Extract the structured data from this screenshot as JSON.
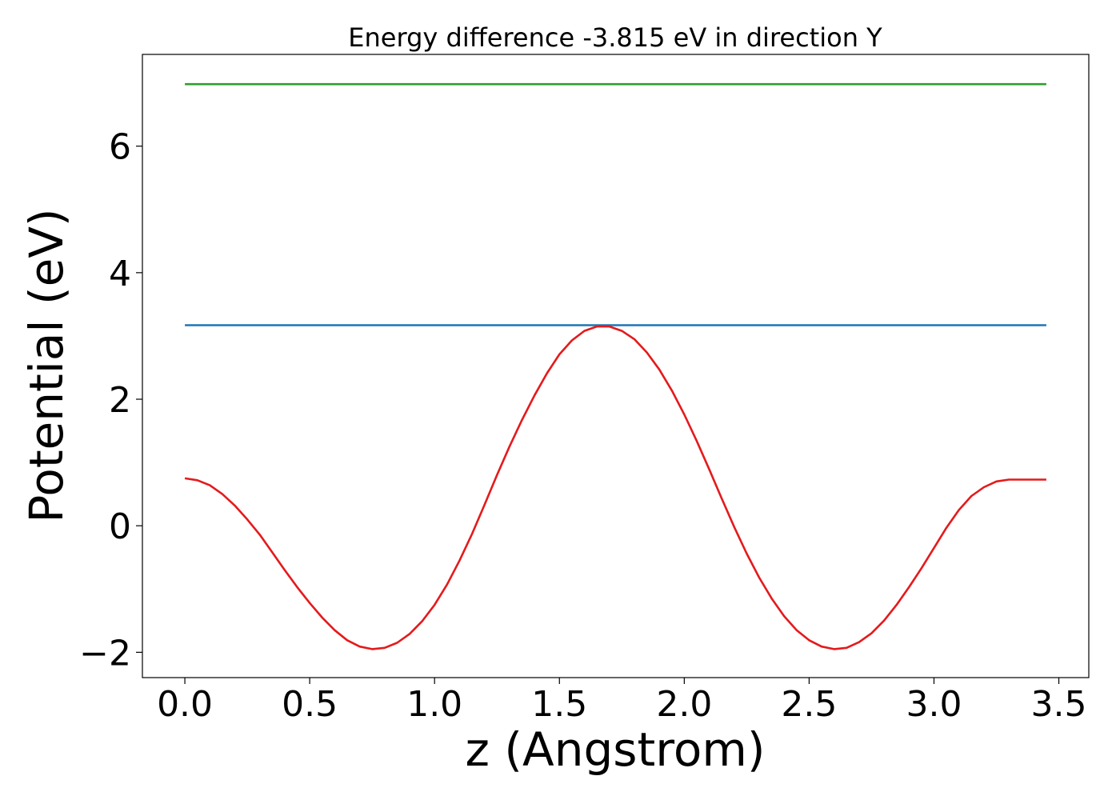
{
  "chart_data": {
    "type": "line",
    "title": "Energy difference -3.815 eV in direction Y",
    "xlabel": "z (Angstrom)",
    "ylabel": "Potential (eV)",
    "xlim": [
      -0.17,
      3.62
    ],
    "ylim": [
      -2.4,
      7.45
    ],
    "grid": false,
    "x_ticks": [
      0.0,
      0.5,
      1.0,
      1.5,
      2.0,
      2.5,
      3.0,
      3.5
    ],
    "x_tick_labels": [
      "0.0",
      "0.5",
      "1.0",
      "1.5",
      "2.0",
      "2.5",
      "3.0",
      "3.5"
    ],
    "y_ticks": [
      -2,
      0,
      2,
      4,
      6
    ],
    "y_tick_labels": [
      "−2",
      "0",
      "2",
      "4",
      "6"
    ],
    "series": [
      {
        "color": "#2ca02c",
        "x": [
          0.0,
          3.45
        ],
        "y": [
          6.98,
          6.98
        ]
      },
      {
        "color": "#1f77b4",
        "x": [
          0.0,
          3.45
        ],
        "y": [
          3.17,
          3.17
        ]
      },
      {
        "color": "#e41a1c",
        "x": [
          0.0,
          0.05,
          0.1,
          0.15,
          0.2,
          0.25,
          0.3,
          0.35,
          0.4,
          0.45,
          0.5,
          0.55,
          0.6,
          0.65,
          0.7,
          0.75,
          0.8,
          0.85,
          0.9,
          0.95,
          1.0,
          1.05,
          1.1,
          1.15,
          1.2,
          1.25,
          1.3,
          1.35,
          1.4,
          1.45,
          1.5,
          1.55,
          1.6,
          1.65,
          1.7,
          1.75,
          1.8,
          1.85,
          1.9,
          1.95,
          2.0,
          2.05,
          2.1,
          2.15,
          2.2,
          2.25,
          2.3,
          2.35,
          2.4,
          2.45,
          2.5,
          2.55,
          2.6,
          2.65,
          2.7,
          2.75,
          2.8,
          2.85,
          2.9,
          2.95,
          3.0,
          3.05,
          3.1,
          3.15,
          3.2,
          3.25,
          3.3,
          3.35,
          3.4,
          3.45
        ],
        "y": [
          0.75,
          0.72,
          0.64,
          0.5,
          0.32,
          0.1,
          -0.14,
          -0.42,
          -0.7,
          -0.97,
          -1.22,
          -1.45,
          -1.65,
          -1.81,
          -1.91,
          -1.95,
          -1.93,
          -1.85,
          -1.71,
          -1.51,
          -1.25,
          -0.93,
          -0.55,
          -0.13,
          0.33,
          0.8,
          1.25,
          1.67,
          2.06,
          2.41,
          2.71,
          2.93,
          3.08,
          3.15,
          3.15,
          3.08,
          2.95,
          2.74,
          2.47,
          2.14,
          1.76,
          1.34,
          0.89,
          0.43,
          -0.02,
          -0.44,
          -0.82,
          -1.15,
          -1.43,
          -1.65,
          -1.81,
          -1.91,
          -1.95,
          -1.93,
          -1.84,
          -1.7,
          -1.5,
          -1.25,
          -0.97,
          -0.67,
          -0.35,
          -0.03,
          0.25,
          0.47,
          0.61,
          0.7,
          0.73,
          0.73,
          0.73,
          0.73
        ]
      }
    ]
  }
}
